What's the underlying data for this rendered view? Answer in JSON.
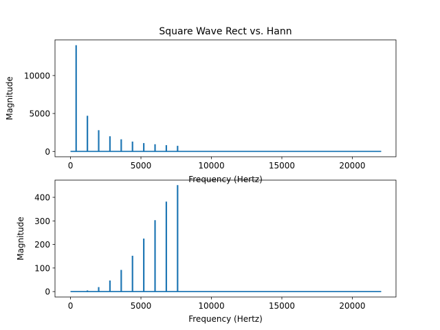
{
  "chart_data": [
    {
      "type": "line",
      "title": "Square Wave Rect vs. Hann",
      "xlabel": "Frequency (Hertz)",
      "ylabel": "Magnitude",
      "xlim": [
        -1100,
        23100
      ],
      "ylim": [
        -700,
        14700
      ],
      "xticks": [
        0,
        5000,
        10000,
        15000,
        20000
      ],
      "yticks": [
        0,
        5000,
        10000
      ],
      "grid": false,
      "color": "#1f77b4",
      "baseline": {
        "x_start": 0,
        "x_end": 22050,
        "y": 0
      },
      "peaks": [
        {
          "x": 400,
          "y": 14000
        },
        {
          "x": 1200,
          "y": 4700
        },
        {
          "x": 2000,
          "y": 2800
        },
        {
          "x": 2800,
          "y": 2000
        },
        {
          "x": 3600,
          "y": 1600
        },
        {
          "x": 4400,
          "y": 1300
        },
        {
          "x": 5200,
          "y": 1100
        },
        {
          "x": 6000,
          "y": 950
        },
        {
          "x": 6800,
          "y": 830
        },
        {
          "x": 7600,
          "y": 740
        }
      ]
    },
    {
      "type": "line",
      "title": "",
      "xlabel": "Frequency (Hertz)",
      "ylabel": "Magnitude",
      "xlim": [
        -1100,
        23100
      ],
      "ylim": [
        -23,
        473
      ],
      "xticks": [
        0,
        5000,
        10000,
        15000,
        20000
      ],
      "yticks": [
        0,
        100,
        200,
        300,
        400
      ],
      "grid": false,
      "color": "#1f77b4",
      "baseline": {
        "x_start": 0,
        "x_end": 22050,
        "y": 0
      },
      "peaks": [
        {
          "x": 1200,
          "y": 5
        },
        {
          "x": 2000,
          "y": 19
        },
        {
          "x": 2800,
          "y": 47
        },
        {
          "x": 3600,
          "y": 92
        },
        {
          "x": 4400,
          "y": 152
        },
        {
          "x": 5200,
          "y": 225
        },
        {
          "x": 6000,
          "y": 303
        },
        {
          "x": 6800,
          "y": 382
        },
        {
          "x": 7600,
          "y": 452
        }
      ]
    }
  ]
}
